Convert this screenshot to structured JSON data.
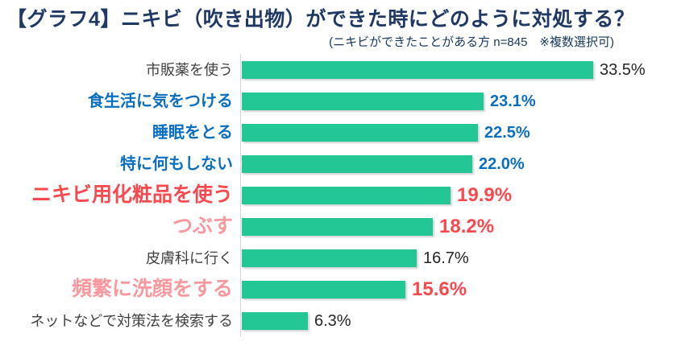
{
  "header": {
    "title": "【グラフ4】ニキビ（吹き出物）ができた時にどのように対処する？",
    "subtitle": "(ニキビができたことがある方 n=845　※複数選択可)"
  },
  "colors": {
    "bar": "#23C796",
    "title_navy": "#1F3864",
    "subtitle_navy": "#17375E",
    "blue": "#0B6FC1",
    "red": "#F8494F",
    "pink": "#F9989E",
    "axis_line": "#D9D9D9"
  },
  "chart_data": {
    "type": "bar",
    "orientation": "horizontal",
    "title": "【グラフ4】ニキビ（吹き出物）ができた時にどのように対処する？",
    "subtitle": "(ニキビができたことがある方 n=845　※複数選択可)",
    "unit": "%",
    "xlim": [
      0,
      35
    ],
    "grid": false,
    "legend": false,
    "categories": [
      "市販薬を使う",
      "食生活に気をつける",
      "睡眠をとる",
      "特に何もしない",
      "ニキビ用化粧品を使う",
      "つぶす",
      "皮膚科に行く",
      "頻繁に洗顔をする",
      "ネットなどで対策法を検索する"
    ],
    "values": [
      33.5,
      23.1,
      22.5,
      22.0,
      19.9,
      18.2,
      16.7,
      15.6,
      6.3
    ],
    "items": [
      {
        "label": "市販薬を使う",
        "value": 33.5,
        "display": "33.5%",
        "label_style": "plain",
        "value_style": "plain"
      },
      {
        "label": "食生活に気をつける",
        "value": 23.1,
        "display": "23.1%",
        "label_style": "blue",
        "value_style": "blue"
      },
      {
        "label": "睡眠をとる",
        "value": 22.5,
        "display": "22.5%",
        "label_style": "blue",
        "value_style": "blue"
      },
      {
        "label": "特に何もしない",
        "value": 22.0,
        "display": "22.0%",
        "label_style": "blue",
        "value_style": "blue"
      },
      {
        "label": "ニキビ用化粧品を使う",
        "value": 19.9,
        "display": "19.9%",
        "label_style": "red",
        "value_style": "red"
      },
      {
        "label": "つぶす",
        "value": 18.2,
        "display": "18.2%",
        "label_style": "pink",
        "value_style": "red"
      },
      {
        "label": "皮膚科に行く",
        "value": 16.7,
        "display": "16.7%",
        "label_style": "plain",
        "value_style": "plain"
      },
      {
        "label": "頻繁に洗顔をする",
        "value": 15.6,
        "display": "15.6%",
        "label_style": "pink",
        "value_style": "red"
      },
      {
        "label": "ネットなどで対策法を検索する",
        "value": 6.3,
        "display": "6.3%",
        "label_style": "plain",
        "value_style": "plain"
      }
    ]
  }
}
